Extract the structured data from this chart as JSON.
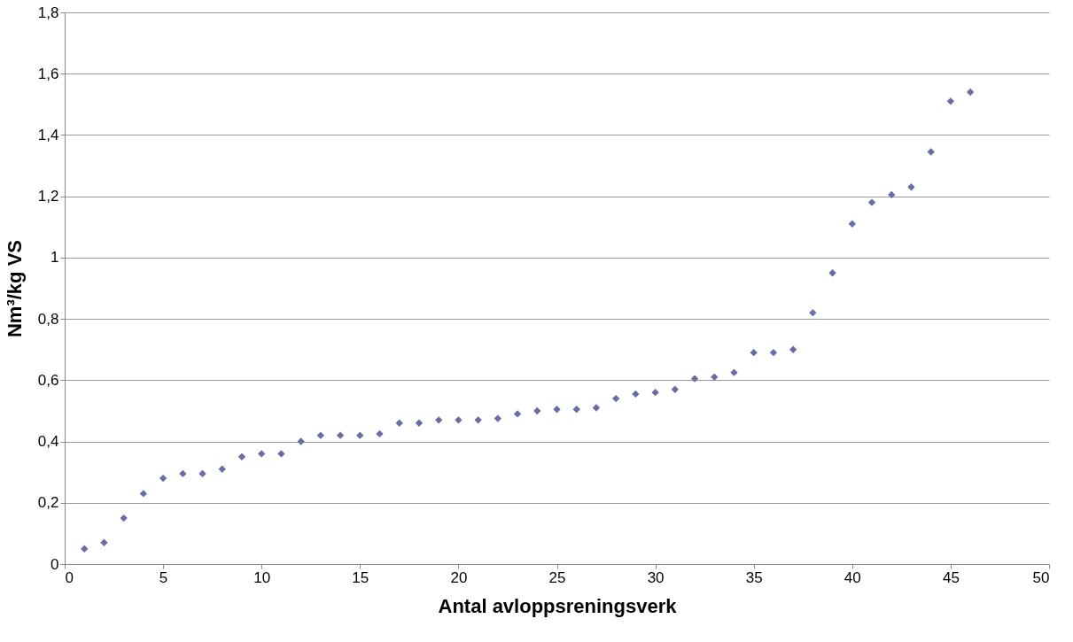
{
  "chart_data": {
    "type": "scatter",
    "xlabel": "Antal avloppsreningsverk",
    "ylabel": "Nm³/kg VS",
    "x": [
      1,
      2,
      3,
      4,
      5,
      6,
      7,
      8,
      9,
      10,
      11,
      12,
      13,
      14,
      15,
      16,
      17,
      18,
      19,
      20,
      21,
      22,
      23,
      24,
      25,
      26,
      27,
      28,
      29,
      30,
      31,
      32,
      33,
      34,
      35,
      36,
      37,
      38,
      39,
      40,
      41,
      42,
      43,
      44,
      45,
      46
    ],
    "series": [
      {
        "color": "#6b6ba8",
        "values": [
          0.05,
          0.07,
          0.15,
          0.23,
          0.28,
          0.295,
          0.295,
          0.31,
          0.35,
          0.36,
          0.36,
          0.4,
          0.42,
          0.42,
          0.42,
          0.425,
          0.46,
          0.46,
          0.47,
          0.47,
          0.47,
          0.475,
          0.49,
          0.5,
          0.505,
          0.505,
          0.51,
          0.54,
          0.555,
          0.56,
          0.57,
          0.605,
          0.61,
          0.625,
          0.69,
          0.69,
          0.7,
          0.82,
          0.95,
          1.11,
          1.18,
          1.205,
          1.23,
          1.345,
          1.51,
          1.54
        ]
      }
    ],
    "xlim": [
      0,
      50
    ],
    "xticks": [
      0,
      5,
      10,
      15,
      20,
      25,
      30,
      35,
      40,
      45,
      50
    ],
    "ylim": [
      0,
      1.8
    ],
    "yticks": [
      0,
      {
        "value": 0.2,
        "label": "0,2"
      },
      {
        "value": 0.4,
        "label": "0,4"
      },
      {
        "value": 0.6,
        "label": "0,6"
      },
      {
        "value": 0.8,
        "label": "0,8"
      },
      1,
      {
        "value": 1.2,
        "label": "1,2"
      },
      {
        "value": 1.4,
        "label": "1,4"
      },
      {
        "value": 1.6,
        "label": "1,6"
      },
      {
        "value": 1.8,
        "label": "1,8"
      }
    ],
    "grid": "y",
    "marker": "diamond"
  }
}
